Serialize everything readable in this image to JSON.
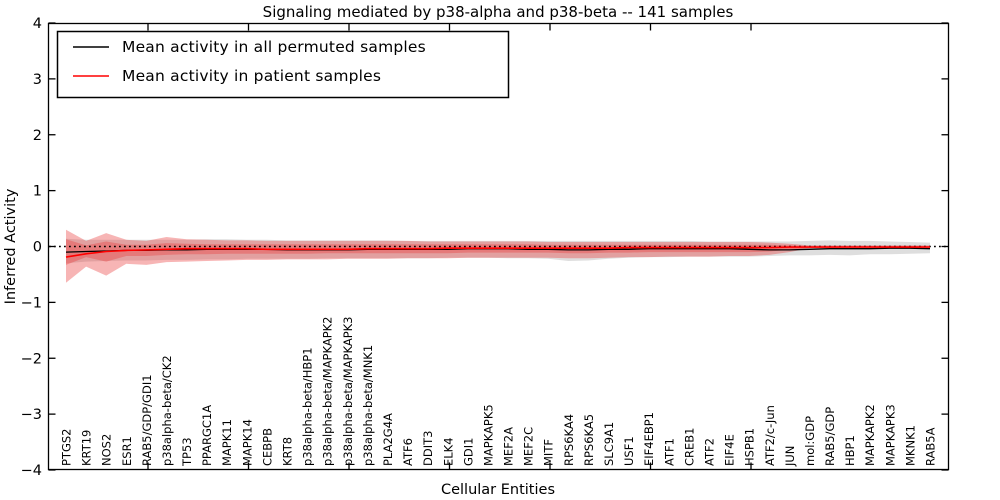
{
  "title": "Signaling mediated by p38-alpha and p38-beta -- 141 samples",
  "axes": {
    "xlabel": "Cellular Entities",
    "ylabel": "Inferred Activity",
    "yticks": [
      4,
      3,
      2,
      1,
      0,
      -1,
      -2,
      -3,
      -4
    ],
    "ylim": [
      -4,
      4
    ]
  },
  "legend": {
    "position": "upper left",
    "entries": [
      {
        "label": "Mean activity in all permuted samples",
        "color": "#000000"
      },
      {
        "label": "Mean activity in patient samples",
        "color": "#ff0000"
      }
    ]
  },
  "colors": {
    "permuted_line": "#000000",
    "patient_line": "#ff0000",
    "patient_band": "rgba(235,60,60,0.38)",
    "permuted_band": "rgba(0,0,0,0.13)",
    "zero_line": "#000000",
    "frame": "#000000",
    "background": "#ffffff"
  },
  "chart_data": {
    "type": "line",
    "title": "Signaling mediated by p38-alpha and p38-beta -- 141 samples",
    "xlabel": "Cellular Entities",
    "ylabel": "Inferred Activity",
    "ylim": [
      -4,
      4
    ],
    "grid": false,
    "legend_position": "upper left",
    "reference_line": {
      "y": 0,
      "style": "dotted",
      "color": "#000000"
    },
    "categories": [
      "PTGS2",
      "KRT19",
      "NOS2",
      "ESR1",
      "RAB5/GDP/GDI1",
      "p38alpha-beta/CK2",
      "TP53",
      "PPARGC1A",
      "MAPK11",
      "MAPK14",
      "CEBPB",
      "KRT8",
      "p38alpha-beta/HBP1",
      "p38alpha-beta/MAPKAPK2",
      "p38alpha-beta/MAPKAPK3",
      "p38alpha-beta/MNK1",
      "PLA2G4A",
      "ATF6",
      "DDIT3",
      "ELK4",
      "GDI1",
      "MAPKAPK5",
      "MEF2A",
      "MEF2C",
      "MITF",
      "RPS6KA4",
      "RPS6KA5",
      "SLC9A1",
      "USF1",
      "EIF4EBP1",
      "ATF1",
      "CREB1",
      "ATF2",
      "EIF4E",
      "HSPB1",
      "ATF2/c-Jun",
      "JUN",
      "mol:GDP",
      "RAB5/GDP",
      "HBP1",
      "MAPKAPK2",
      "MAPKAPK3",
      "MKNK1",
      "RAB5A"
    ],
    "series": [
      {
        "name": "Mean activity in all permuted samples",
        "color": "#000000",
        "width": 1.3,
        "values": [
          -0.1,
          -0.09,
          -0.08,
          -0.07,
          -0.07,
          -0.06,
          -0.06,
          -0.05,
          -0.05,
          -0.05,
          -0.05,
          -0.06,
          -0.06,
          -0.06,
          -0.06,
          -0.05,
          -0.05,
          -0.05,
          -0.05,
          -0.05,
          -0.04,
          -0.04,
          -0.04,
          -0.05,
          -0.05,
          -0.06,
          -0.06,
          -0.05,
          -0.05,
          -0.04,
          -0.04,
          -0.04,
          -0.04,
          -0.04,
          -0.05,
          -0.06,
          -0.06,
          -0.05,
          -0.04,
          -0.04,
          -0.04,
          -0.03,
          -0.03,
          -0.04
        ]
      },
      {
        "name": "Mean activity in patient samples",
        "color": "#ff0000",
        "width": 1.6,
        "values": [
          -0.19,
          -0.13,
          -0.09,
          -0.07,
          -0.06,
          -0.05,
          -0.04,
          -0.04,
          -0.04,
          -0.04,
          -0.05,
          -0.05,
          -0.05,
          -0.05,
          -0.05,
          -0.04,
          -0.04,
          -0.04,
          -0.04,
          -0.03,
          -0.03,
          -0.03,
          -0.03,
          -0.03,
          -0.03,
          -0.03,
          -0.03,
          -0.03,
          -0.02,
          -0.02,
          -0.02,
          -0.02,
          -0.02,
          -0.02,
          -0.02,
          -0.02,
          -0.01,
          -0.01,
          -0.01,
          -0.01,
          -0.01,
          -0.01,
          -0.01,
          -0.01
        ]
      }
    ],
    "bands": [
      {
        "name": "permuted-std-band",
        "color": "rgba(0,0,0,0.13)",
        "upper": [
          0.14,
          0.12,
          0.12,
          0.12,
          0.12,
          0.12,
          0.12,
          0.13,
          0.13,
          0.12,
          0.12,
          0.11,
          0.11,
          0.11,
          0.11,
          0.11,
          0.11,
          0.1,
          0.1,
          0.1,
          0.1,
          0.1,
          0.1,
          0.1,
          0.1,
          0.1,
          0.1,
          0.1,
          0.1,
          0.1,
          0.1,
          0.1,
          0.09,
          0.09,
          0.09,
          0.09,
          0.09,
          0.1,
          0.11,
          0.1,
          0.1,
          0.09,
          0.08,
          0.07
        ],
        "lower": [
          -0.3,
          -0.27,
          -0.26,
          -0.25,
          -0.25,
          -0.24,
          -0.24,
          -0.23,
          -0.23,
          -0.22,
          -0.22,
          -0.22,
          -0.22,
          -0.21,
          -0.21,
          -0.21,
          -0.21,
          -0.21,
          -0.21,
          -0.2,
          -0.2,
          -0.2,
          -0.21,
          -0.21,
          -0.22,
          -0.26,
          -0.25,
          -0.22,
          -0.2,
          -0.19,
          -0.19,
          -0.18,
          -0.18,
          -0.18,
          -0.18,
          -0.17,
          -0.16,
          -0.16,
          -0.15,
          -0.16,
          -0.14,
          -0.14,
          -0.13,
          -0.12
        ]
      },
      {
        "name": "patient-std-band-outer",
        "color": "rgba(235,60,60,0.38)",
        "upper": [
          0.3,
          0.1,
          0.24,
          0.12,
          0.1,
          0.17,
          0.13,
          0.12,
          0.11,
          0.11,
          0.1,
          0.1,
          0.1,
          0.1,
          0.1,
          0.1,
          0.1,
          0.1,
          0.09,
          0.09,
          0.09,
          0.09,
          0.09,
          0.09,
          0.08,
          0.08,
          0.08,
          0.08,
          0.08,
          0.08,
          0.08,
          0.08,
          0.08,
          0.08,
          0.08,
          0.07,
          0.05,
          0.02,
          0.02,
          0.02,
          0.02,
          0.02,
          0.02,
          0.02
        ],
        "lower": [
          -0.65,
          -0.36,
          -0.52,
          -0.31,
          -0.33,
          -0.28,
          -0.27,
          -0.26,
          -0.25,
          -0.24,
          -0.24,
          -0.23,
          -0.23,
          -0.23,
          -0.22,
          -0.22,
          -0.22,
          -0.21,
          -0.21,
          -0.21,
          -0.2,
          -0.2,
          -0.2,
          -0.2,
          -0.2,
          -0.21,
          -0.21,
          -0.2,
          -0.19,
          -0.19,
          -0.18,
          -0.18,
          -0.18,
          -0.17,
          -0.17,
          -0.15,
          -0.1,
          -0.03,
          -0.03,
          -0.02,
          -0.02,
          -0.02,
          -0.02,
          -0.02
        ]
      },
      {
        "name": "patient-std-band-inner",
        "color": "rgba(235,60,60,0.38)",
        "upper": [
          0.13,
          0.02,
          0.09,
          0.03,
          0.03,
          0.06,
          0.05,
          0.04,
          0.04,
          0.04,
          0.04,
          0.04,
          0.04,
          0.04,
          0.04,
          0.04,
          0.04,
          0.04,
          0.04,
          0.04,
          0.04,
          0.04,
          0.04,
          0.04,
          0.03,
          0.03,
          0.03,
          0.03,
          0.03,
          0.03,
          0.03,
          0.03,
          0.03,
          0.03,
          0.03,
          0.03,
          0.02,
          0.01,
          0.01,
          0.01,
          0.01,
          0.01,
          0.01,
          0.01
        ],
        "lower": [
          -0.33,
          -0.19,
          -0.27,
          -0.17,
          -0.17,
          -0.15,
          -0.14,
          -0.14,
          -0.13,
          -0.13,
          -0.13,
          -0.13,
          -0.13,
          -0.12,
          -0.12,
          -0.12,
          -0.12,
          -0.12,
          -0.12,
          -0.12,
          -0.11,
          -0.11,
          -0.11,
          -0.11,
          -0.11,
          -0.12,
          -0.12,
          -0.11,
          -0.11,
          -0.1,
          -0.1,
          -0.1,
          -0.1,
          -0.1,
          -0.1,
          -0.09,
          -0.06,
          -0.02,
          -0.02,
          -0.01,
          -0.01,
          -0.01,
          -0.01,
          -0.01
        ]
      }
    ]
  }
}
